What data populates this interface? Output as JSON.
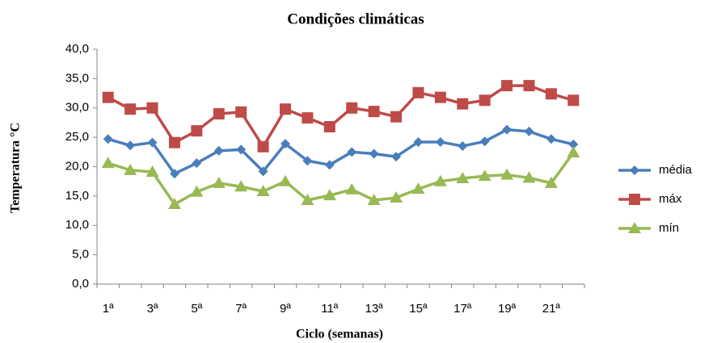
{
  "chart_data": {
    "type": "line",
    "title": "Condições climáticas",
    "x_label": "Ciclo (semanas)",
    "y_label": "Temperatura °C",
    "categories": [
      "1ª",
      null,
      "3ª",
      null,
      "5ª",
      null,
      "7ª",
      null,
      "9ª",
      null,
      "11ª",
      null,
      "13ª",
      null,
      "15ª",
      null,
      "17ª",
      null,
      "19ª",
      null,
      "21ª",
      null
    ],
    "series": [
      {
        "name": "média",
        "color": "#4a7ebb",
        "marker": "diamond",
        "values": [
          24.7,
          23.6,
          24.1,
          18.8,
          20.6,
          22.7,
          22.9,
          19.2,
          23.9,
          21.0,
          20.3,
          22.5,
          22.2,
          21.7,
          24.2,
          24.2,
          23.5,
          24.3,
          26.3,
          26.0,
          24.7,
          23.8
        ]
      },
      {
        "name": "máx",
        "color": "#be4b48",
        "marker": "square",
        "values": [
          31.8,
          29.8,
          30.0,
          24.1,
          26.1,
          29.0,
          29.3,
          23.4,
          29.8,
          28.3,
          26.8,
          30.0,
          29.4,
          28.5,
          32.6,
          31.8,
          30.7,
          31.3,
          33.8,
          33.8,
          32.4,
          31.3
        ]
      },
      {
        "name": "mín",
        "color": "#98b954",
        "marker": "triangle",
        "values": [
          20.6,
          19.4,
          19.1,
          13.6,
          15.7,
          17.2,
          16.6,
          15.8,
          17.5,
          14.3,
          15.1,
          16.1,
          14.3,
          14.7,
          16.2,
          17.5,
          18.0,
          18.4,
          18.6,
          18.1,
          17.2,
          22.4
        ]
      }
    ],
    "ylim": [
      0,
      40
    ],
    "yticks": [
      {
        "value": 0,
        "label": "0,0"
      },
      {
        "value": 5,
        "label": "5,0"
      },
      {
        "value": 10,
        "label": "10,0"
      },
      {
        "value": 15,
        "label": "15,0"
      },
      {
        "value": 20,
        "label": "20,0"
      },
      {
        "value": 25,
        "label": "25,0"
      },
      {
        "value": 30,
        "label": "30,0"
      },
      {
        "value": 35,
        "label": "35,0"
      },
      {
        "value": 40,
        "label": "40,0"
      }
    ],
    "grid": false,
    "legend": "right"
  }
}
